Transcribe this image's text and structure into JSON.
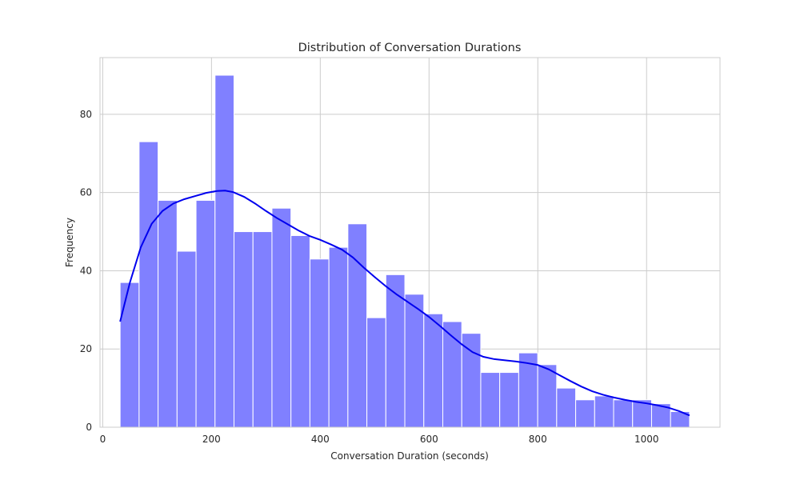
{
  "chart_data": {
    "type": "bar",
    "title": "Distribution of Conversation Durations",
    "xlabel": "Conversation Duration (seconds)",
    "ylabel": "Frequency",
    "xlim": [
      -5,
      1135
    ],
    "ylim": [
      0,
      94.5
    ],
    "xticks": [
      0,
      200,
      400,
      600,
      800,
      1000
    ],
    "yticks": [
      0,
      20,
      40,
      60,
      80
    ],
    "grid": true,
    "bar_color": "#8080ff",
    "bar_edge_color": "#ffffff",
    "kde_color": "#0000ee",
    "bins": [
      {
        "x0": 32.0,
        "x1": 66.9,
        "count": 37
      },
      {
        "x0": 66.9,
        "x1": 101.8,
        "count": 73
      },
      {
        "x0": 101.8,
        "x1": 136.7,
        "count": 58
      },
      {
        "x0": 136.7,
        "x1": 171.6,
        "count": 45
      },
      {
        "x0": 171.6,
        "x1": 206.5,
        "count": 58
      },
      {
        "x0": 206.5,
        "x1": 241.4,
        "count": 90
      },
      {
        "x0": 241.4,
        "x1": 276.3,
        "count": 50
      },
      {
        "x0": 276.3,
        "x1": 311.2,
        "count": 50
      },
      {
        "x0": 311.2,
        "x1": 346.1,
        "count": 56
      },
      {
        "x0": 346.1,
        "x1": 381.0,
        "count": 49
      },
      {
        "x0": 381.0,
        "x1": 415.9,
        "count": 43
      },
      {
        "x0": 415.9,
        "x1": 450.8,
        "count": 46
      },
      {
        "x0": 450.8,
        "x1": 485.7,
        "count": 52
      },
      {
        "x0": 485.7,
        "x1": 520.6,
        "count": 28
      },
      {
        "x0": 520.6,
        "x1": 555.5,
        "count": 39
      },
      {
        "x0": 555.5,
        "x1": 590.4,
        "count": 34
      },
      {
        "x0": 590.4,
        "x1": 625.3,
        "count": 29
      },
      {
        "x0": 625.3,
        "x1": 660.2,
        "count": 27
      },
      {
        "x0": 660.2,
        "x1": 695.1,
        "count": 24
      },
      {
        "x0": 695.1,
        "x1": 730.0,
        "count": 14
      },
      {
        "x0": 730.0,
        "x1": 764.9,
        "count": 14
      },
      {
        "x0": 764.9,
        "x1": 799.8,
        "count": 19
      },
      {
        "x0": 799.8,
        "x1": 834.7,
        "count": 16
      },
      {
        "x0": 834.7,
        "x1": 869.6,
        "count": 10
      },
      {
        "x0": 869.6,
        "x1": 904.5,
        "count": 7
      },
      {
        "x0": 904.5,
        "x1": 939.4,
        "count": 8
      },
      {
        "x0": 939.4,
        "x1": 974.3,
        "count": 7
      },
      {
        "x0": 974.3,
        "x1": 1009.2,
        "count": 7
      },
      {
        "x0": 1009.2,
        "x1": 1044.1,
        "count": 6
      },
      {
        "x0": 1044.1,
        "x1": 1079.0,
        "count": 4
      }
    ],
    "kde": {
      "x": [
        32,
        50,
        70,
        90,
        110,
        130,
        150,
        170,
        190,
        210,
        225,
        240,
        260,
        280,
        300,
        320,
        340,
        360,
        380,
        400,
        420,
        440,
        460,
        480,
        500,
        520,
        540,
        560,
        580,
        600,
        620,
        640,
        660,
        680,
        700,
        720,
        740,
        760,
        780,
        800,
        820,
        840,
        860,
        880,
        900,
        920,
        940,
        960,
        980,
        1000,
        1020,
        1040,
        1060,
        1079
      ],
      "y": [
        27,
        37,
        46,
        52,
        55.3,
        57.2,
        58.3,
        59.1,
        59.9,
        60.4,
        60.5,
        60.1,
        58.9,
        57.2,
        55.3,
        53.5,
        51.9,
        50.3,
        48.9,
        47.9,
        46.7,
        45.4,
        43.4,
        40.8,
        38.4,
        36.1,
        34.0,
        32.1,
        30.2,
        28.2,
        25.9,
        23.5,
        21.2,
        19.2,
        18.0,
        17.4,
        17.1,
        16.8,
        16.4,
        15.9,
        14.8,
        13.3,
        11.8,
        10.4,
        9.2,
        8.3,
        7.6,
        7.0,
        6.5,
        6.1,
        5.6,
        5.0,
        4.1,
        3.0
      ]
    }
  }
}
